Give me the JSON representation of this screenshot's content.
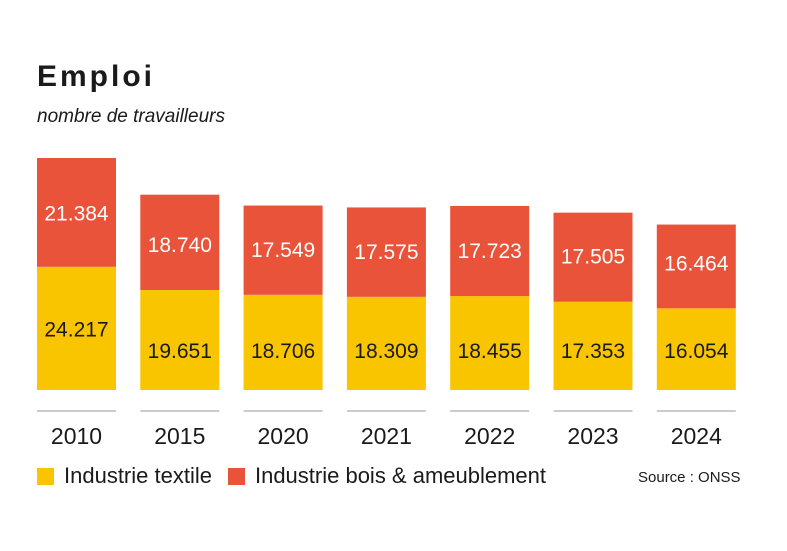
{
  "chart_data": {
    "type": "bar",
    "stacked": true,
    "title": "Emploi",
    "subtitle": "nombre de travailleurs",
    "categories": [
      "2010",
      "2015",
      "2020",
      "2021",
      "2022",
      "2023",
      "2024"
    ],
    "series": [
      {
        "name": "Industrie textile",
        "color": "#f9c400",
        "values": [
          24217,
          19651,
          18706,
          18309,
          18455,
          17353,
          16054
        ],
        "labels": [
          "24.217",
          "19.651",
          "18.706",
          "18.309",
          "18.455",
          "17.353",
          "16.054"
        ]
      },
      {
        "name": "Industrie bois & ameublement",
        "color": "#e8533a",
        "values": [
          21384,
          18740,
          17549,
          17575,
          17723,
          17505,
          16464
        ],
        "labels": [
          "21.384",
          "18.740",
          "17.549",
          "17.575",
          "17.723",
          "17.505",
          "16.464"
        ]
      }
    ],
    "ylim": [
      0,
      45601
    ],
    "grid": false,
    "legend_position": "bottom-left"
  },
  "source": "Source : ONSS"
}
